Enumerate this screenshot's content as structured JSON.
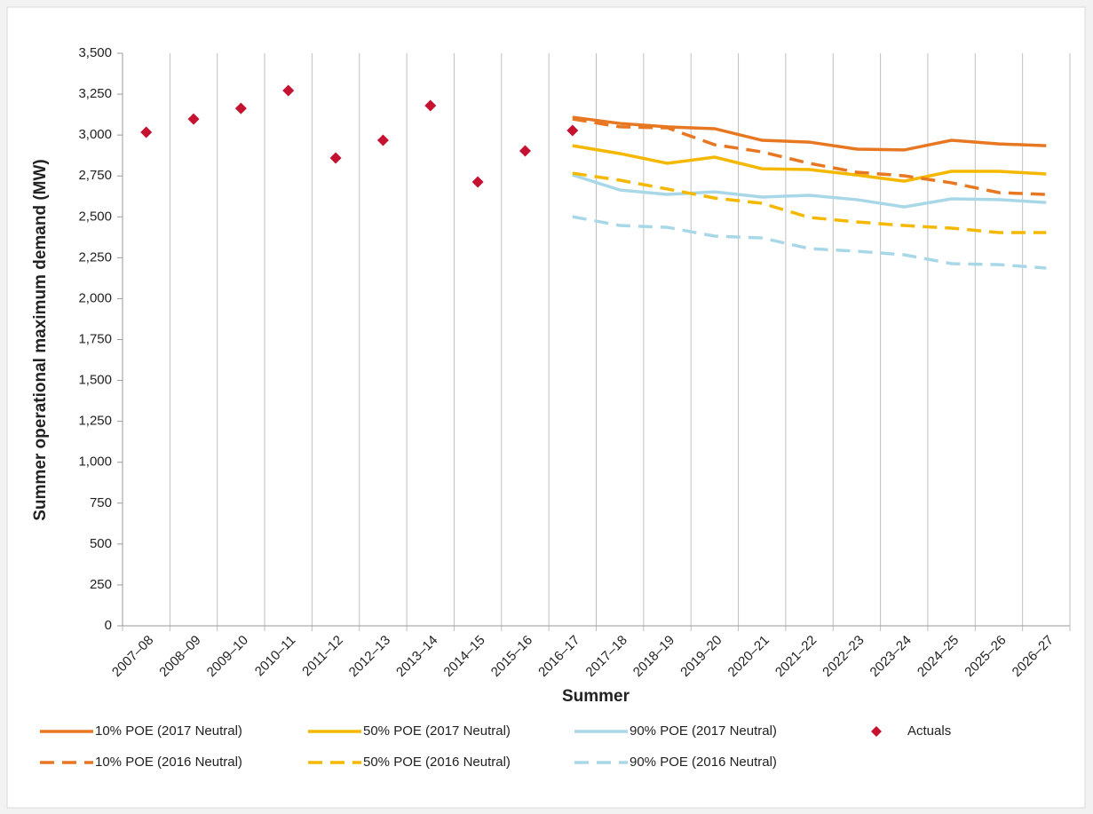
{
  "chart_data": {
    "type": "line",
    "y_label": "Summer operational maximum demand (MW)",
    "x_label": "Summer",
    "categories": [
      "2007–08",
      "2008–09",
      "2009–10",
      "2010–11",
      "2011–12",
      "2012–13",
      "2013–14",
      "2014–15",
      "2015–16",
      "2016–17",
      "2017–18",
      "2018–19",
      "2019–20",
      "2020–21",
      "2021–22",
      "2022–23",
      "2023–24",
      "2024–25",
      "2025–26",
      "2026–27"
    ],
    "ylim": [
      0,
      3500
    ],
    "yticks": [
      0,
      250,
      500,
      750,
      {
        "value": 1000,
        "label": "1,000"
      },
      {
        "value": 1250,
        "label": "1,250"
      },
      {
        "value": 1500,
        "label": "1,500"
      },
      {
        "value": 1750,
        "label": "1,750"
      },
      {
        "value": 2000,
        "label": "2,000"
      },
      {
        "value": 2250,
        "label": "2,250"
      },
      {
        "value": 2500,
        "label": "2,500"
      },
      {
        "value": 2750,
        "label": "2,750"
      },
      {
        "value": 3000,
        "label": "3,000"
      },
      {
        "value": 3250,
        "label": "3,250"
      },
      {
        "value": 3500,
        "label": "3,500"
      }
    ],
    "grid": true,
    "series": [
      {
        "name": "10% POE (2017 Neutral)",
        "color": "#e87722",
        "style": "solid",
        "values": [
          null,
          null,
          null,
          null,
          null,
          null,
          null,
          null,
          null,
          3109,
          3071,
          3050,
          3039,
          2968,
          2957,
          2914,
          2909,
          2968,
          2946,
          2935
        ]
      },
      {
        "name": "50% POE (2017 Neutral)",
        "color": "#f5b800",
        "style": "solid",
        "values": [
          null,
          null,
          null,
          null,
          null,
          null,
          null,
          null,
          null,
          2935,
          2887,
          2827,
          2865,
          2794,
          2789,
          2756,
          2718,
          2778,
          2778,
          2762
        ]
      },
      {
        "name": "90% POE (2017 Neutral)",
        "color": "#a8d8e8",
        "style": "solid",
        "values": [
          null,
          null,
          null,
          null,
          null,
          null,
          null,
          null,
          null,
          2756,
          2664,
          2637,
          2653,
          2621,
          2632,
          2605,
          2561,
          2610,
          2605,
          2588
        ]
      },
      {
        "name": "Actuals",
        "color": "#c41230",
        "style": "diamond",
        "values": [
          3017,
          3098,
          3163,
          3272,
          2860,
          2968,
          3180,
          2713,
          2903,
          3028,
          null,
          null,
          null,
          null,
          null,
          null,
          null,
          null,
          null,
          null
        ]
      },
      {
        "name": "10% POE (2016 Neutral)",
        "color": "#e87722",
        "style": "dashed",
        "values": [
          null,
          null,
          null,
          null,
          null,
          null,
          null,
          null,
          null,
          3098,
          3050,
          3044,
          2941,
          2897,
          2827,
          2773,
          2751,
          2708,
          2648,
          2637
        ]
      },
      {
        "name": "50% POE (2016 Neutral)",
        "color": "#f5b800",
        "style": "dashed",
        "values": [
          null,
          null,
          null,
          null,
          null,
          null,
          null,
          null,
          null,
          2767,
          2724,
          2670,
          2615,
          2583,
          2496,
          2469,
          2447,
          2431,
          2404,
          2404
        ]
      },
      {
        "name": "90% POE (2016 Neutral)",
        "color": "#a8d8e8",
        "style": "dashed",
        "values": [
          null,
          null,
          null,
          null,
          null,
          null,
          null,
          null,
          null,
          2501,
          2447,
          2436,
          2382,
          2371,
          2306,
          2290,
          2268,
          2214,
          2208,
          2187
        ]
      }
    ]
  }
}
